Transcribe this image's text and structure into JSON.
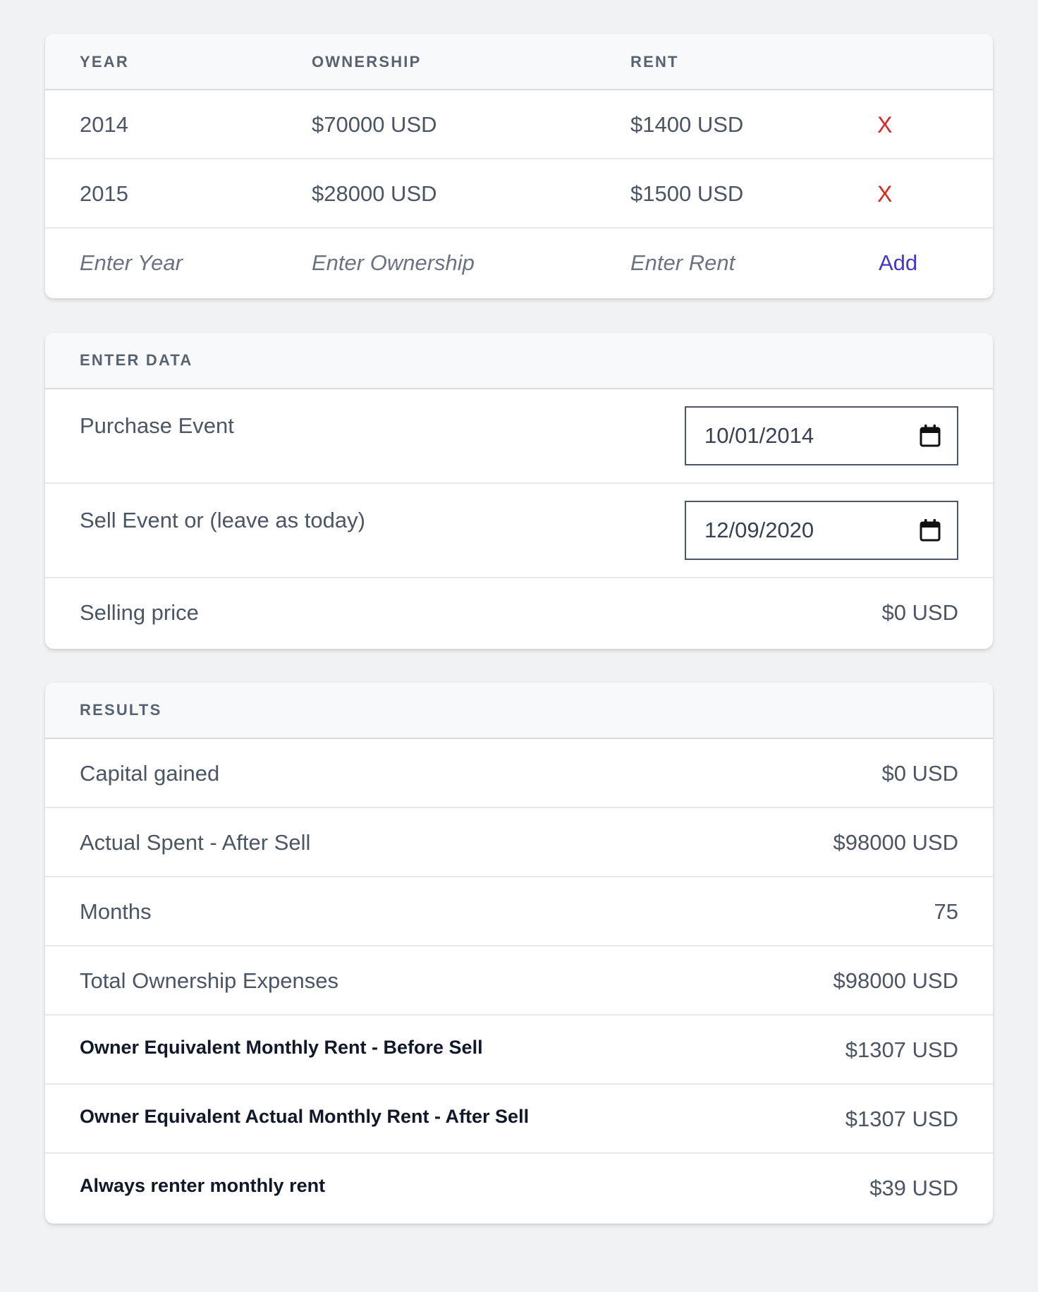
{
  "table": {
    "headers": {
      "year": "YEAR",
      "ownership": "OWNERSHIP",
      "rent": "RENT"
    },
    "rows": [
      {
        "year": "2014",
        "ownership": "$70000 USD",
        "rent": "$1400 USD",
        "remove": "X"
      },
      {
        "year": "2015",
        "ownership": "$28000 USD",
        "rent": "$1500 USD",
        "remove": "X"
      }
    ],
    "new_row": {
      "year_placeholder": "Enter Year",
      "ownership_placeholder": "Enter Ownership",
      "rent_placeholder": "Enter Rent",
      "add_label": "Add"
    }
  },
  "enter_data": {
    "title": "ENTER DATA",
    "purchase_label": "Purchase Event",
    "purchase_value": "10/01/2014",
    "sell_label": "Sell Event or (leave as today)",
    "sell_value": "12/09/2020",
    "selling_price_label": "Selling price",
    "selling_price_value": "$0 USD"
  },
  "results": {
    "title": "RESULTS",
    "items": [
      {
        "label": "Capital gained",
        "value": "$0 USD"
      },
      {
        "label": "Actual Spent - After Sell",
        "value": "$98000 USD"
      },
      {
        "label": "Months",
        "value": "75"
      },
      {
        "label": "Total Ownership Expenses",
        "value": "$98000 USD"
      },
      {
        "label": "Owner Equivalent Monthly Rent - Before Sell",
        "value": "$1307 USD"
      },
      {
        "label": "Owner Equivalent Actual Monthly Rent - After Sell",
        "value": "$1307 USD"
      },
      {
        "label": "Always renter monthly rent",
        "value": "$39 USD"
      }
    ]
  },
  "icons": {
    "calendar": "calendar-icon"
  },
  "colors": {
    "remove": "#dc2626",
    "add": "#4338ca",
    "background": "#f1f2f4"
  }
}
